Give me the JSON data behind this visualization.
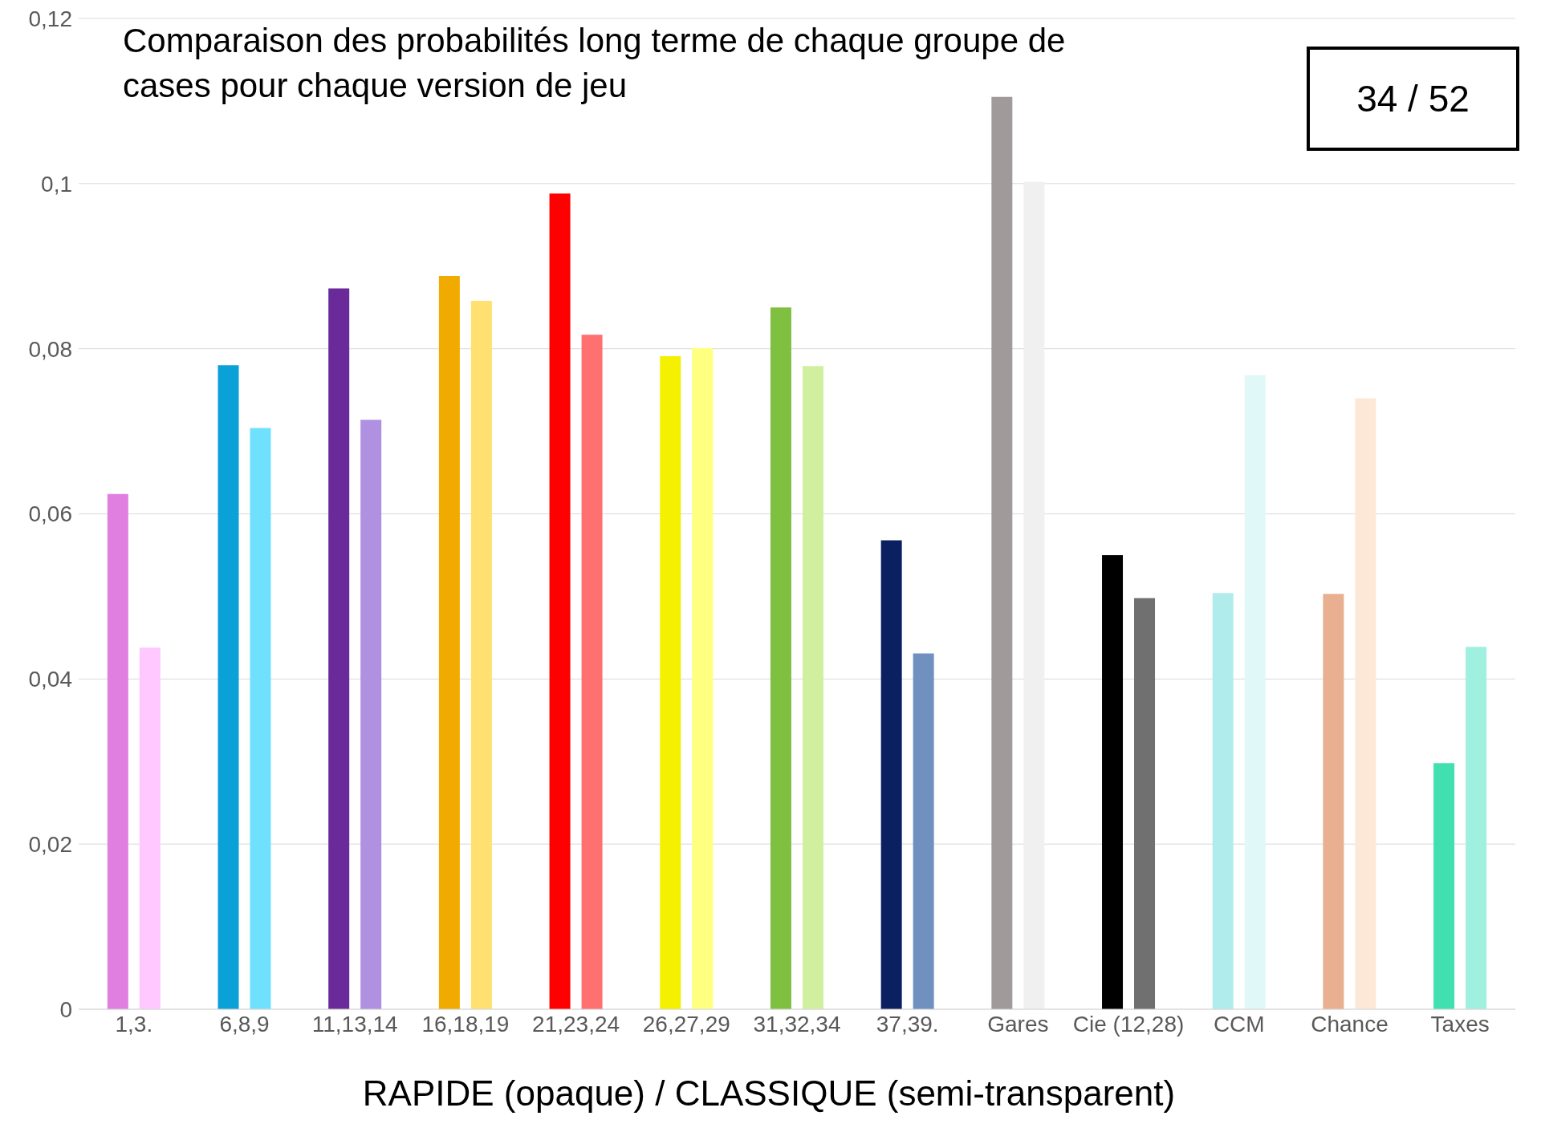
{
  "chart_data": {
    "type": "bar",
    "title": "Comparaison des probabilités long terme de chaque groupe de cases pour chaque version de jeu",
    "xlabel": "RAPIDE (opaque) / CLASSIQUE (semi-transparent)",
    "annotations": [
      "34 / 52"
    ],
    "categories": [
      "1,3.",
      "6,8,9",
      "11,13,14",
      "16,18,19",
      "21,23,24",
      "26,27,29",
      "31,32,34",
      "37,39.",
      "Gares",
      "Cie (12,28)",
      "CCM",
      "Chance",
      "Taxes"
    ],
    "series": [
      {
        "colors": [
          "#e07fe0",
          "#0aa0d8",
          "#6a2a9a",
          "#f0aa00",
          "#ff0000",
          "#f5f000",
          "#80c040",
          "#0a2060",
          "#a09a9a",
          "#000000",
          "#b0ecec",
          "#e8b090",
          "#40e0b0"
        ],
        "values": [
          0.0624,
          0.078,
          0.0873,
          0.0888,
          0.0988,
          0.0791,
          0.085,
          0.0568,
          0.1105,
          0.055,
          0.0504,
          0.0503,
          0.0298
        ]
      },
      {
        "colors": [
          "#ffc8ff",
          "#70e0ff",
          "#b090e0",
          "#ffe070",
          "#ff7070",
          "#ffff80",
          "#d0f0a0",
          "#7090c0",
          "#f0f0f0",
          "#707070",
          "#e0f8f8",
          "#fde8d8",
          "#a0f0e0"
        ],
        "values": [
          0.0438,
          0.0704,
          0.0714,
          0.0858,
          0.0817,
          0.0801,
          0.0779,
          0.0431,
          0.1002,
          0.0498,
          0.0768,
          0.074,
          0.0439
        ]
      }
    ],
    "ylim": [
      0,
      0.12
    ],
    "yticks": [
      {
        "value": 0,
        "label": "0"
      },
      {
        "value": 0.02,
        "label": "0,02"
      },
      {
        "value": 0.04,
        "label": "0,04"
      },
      {
        "value": 0.06,
        "label": "0,06"
      },
      {
        "value": 0.08,
        "label": "0,08"
      },
      {
        "value": 0.1,
        "label": "0,1"
      },
      {
        "value": 0.12,
        "label": "0,12"
      }
    ],
    "grid": "y"
  }
}
